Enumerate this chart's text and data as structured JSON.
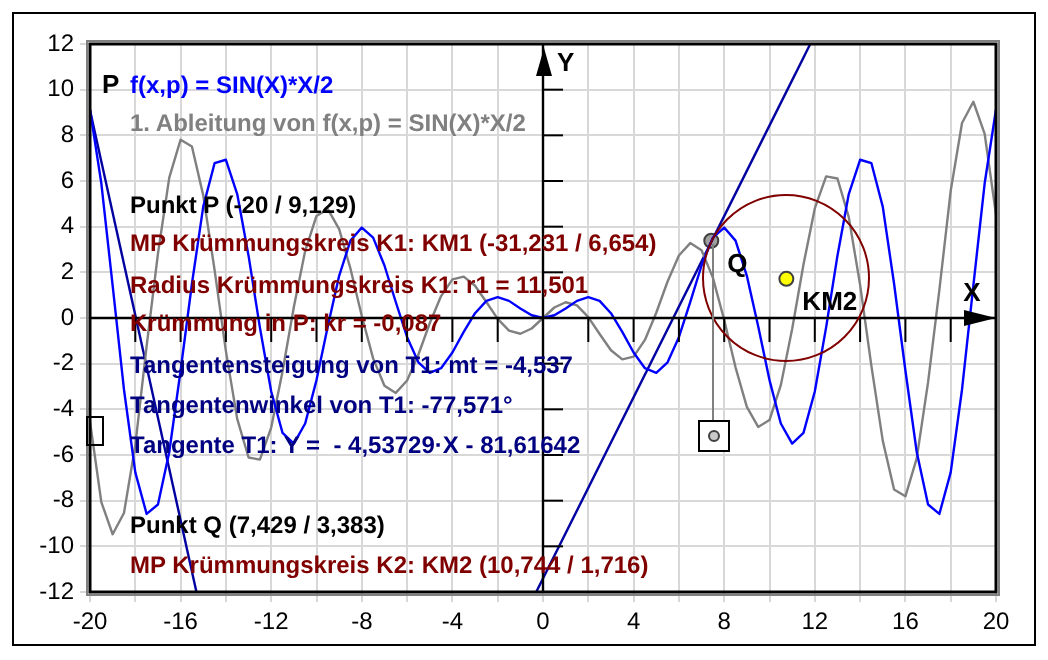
{
  "chart_data": {
    "type": "line",
    "xlabel": "X",
    "ylabel": "Y",
    "xlim": [
      -20,
      20
    ],
    "ylim": [
      -12,
      12
    ],
    "xticks": [
      -20,
      {
        "value": -18,
        "label": null
      },
      -16,
      {
        "value": -14,
        "label": null
      },
      -12,
      {
        "value": -10,
        "label": null
      },
      -8,
      {
        "value": -6,
        "label": null
      },
      -4,
      {
        "value": -2,
        "label": null
      },
      0,
      {
        "value": 2,
        "label": null
      },
      4,
      {
        "value": 6,
        "label": null
      },
      8,
      {
        "value": 10,
        "label": null
      },
      12,
      {
        "value": 14,
        "label": null
      },
      16,
      {
        "value": 18,
        "label": null
      },
      20
    ],
    "yticks": [
      -12,
      -10,
      -8,
      -6,
      -4,
      -2,
      0,
      2,
      4,
      6,
      8,
      10,
      12
    ],
    "grid": true,
    "legend": "top left",
    "marker": "none",
    "line_style": "solid",
    "series": [
      {
        "name": "f(x,p) = SIN(X)*X/2",
        "color": "#0000ff",
        "x": [
          -20,
          -19.5,
          -19,
          -18.5,
          -18,
          -17.5,
          -17,
          -16.5,
          -16,
          -15.5,
          -15,
          -14.5,
          -14,
          -13.5,
          -13,
          -12.5,
          -12,
          -11.5,
          -11,
          -10.5,
          -10,
          -9.5,
          -9,
          -8.5,
          -8,
          -7.5,
          -7,
          -6.5,
          -6,
          -5.5,
          -5,
          -4.5,
          -4,
          -3.5,
          -3,
          -2.5,
          -2,
          -1.5,
          -1,
          -0.5,
          0,
          0.5,
          1,
          1.5,
          2,
          2.5,
          3,
          3.5,
          4,
          4.5,
          5,
          5.5,
          6,
          6.5,
          7,
          7.5,
          8,
          8.5,
          9,
          9.5,
          10,
          10.5,
          11,
          11.5,
          12,
          12.5,
          13,
          13.5,
          14,
          14.5,
          15,
          15.5,
          16,
          16.5,
          17,
          17.5,
          18,
          18.5,
          19,
          19.5,
          20
        ],
        "values": [
          9.13,
          5.9,
          1.42,
          -3.13,
          -6.76,
          -8.58,
          -8.17,
          -5.87,
          -2.3,
          1.5,
          4.88,
          6.78,
          6.93,
          5.43,
          2.73,
          -0.41,
          -3.22,
          -5.03,
          -5.5,
          -4.62,
          -2.72,
          -0.36,
          1.85,
          3.39,
          3.96,
          3.52,
          2.3,
          0.7,
          -0.84,
          -1.94,
          -2.4,
          -2.2,
          -1.51,
          -0.61,
          0.21,
          0.75,
          0.91,
          0.75,
          0.42,
          0.12,
          0,
          0.12,
          0.42,
          0.75,
          0.91,
          0.75,
          0.21,
          -0.61,
          -1.51,
          -2.2,
          -2.4,
          -1.94,
          -0.84,
          0.7,
          2.3,
          3.52,
          3.96,
          3.39,
          1.85,
          -0.36,
          -2.72,
          -4.62,
          -5.5,
          -5.03,
          -3.22,
          -0.41,
          2.73,
          5.43,
          6.93,
          6.78,
          4.88,
          1.5,
          -2.3,
          -5.87,
          -8.17,
          -8.58,
          -6.76,
          -3.13,
          1.42,
          5.9,
          9.13
        ]
      },
      {
        "name": "1. Ableitung von f(x,p) = SIN(X)*X/2",
        "color": "#808080",
        "x": [
          -20,
          -19.5,
          -19,
          -18.5,
          -18,
          -17.5,
          -17,
          -16.5,
          -16,
          -15.5,
          -15,
          -14.5,
          -14,
          -13.5,
          -13,
          -12.5,
          -12,
          -11.5,
          -11,
          -10.5,
          -10,
          -9.5,
          -9,
          -8.5,
          -8,
          -7.5,
          -7,
          -6.5,
          -6,
          -5.5,
          -5,
          -4.5,
          -4,
          -3.5,
          -3,
          -2.5,
          -2,
          -1.5,
          -1,
          -0.5,
          0,
          0.5,
          1,
          1.5,
          2,
          2.5,
          3,
          3.5,
          4,
          4.5,
          5,
          5.5,
          6,
          6.5,
          7,
          7.5,
          8,
          8.5,
          9,
          9.5,
          10,
          10.5,
          11,
          11.5,
          12,
          12.5,
          13,
          13.5,
          14,
          14.5,
          15,
          15.5,
          16,
          16.5,
          17,
          17.5,
          18,
          18.5,
          19,
          19.5,
          20
        ],
        "values": [
          -4.54,
          -8.06,
          -9.47,
          -8.54,
          -5.57,
          -1.23,
          2.82,
          6.15,
          7.81,
          7.51,
          5.37,
          2.11,
          -1.45,
          -4.42,
          -6.11,
          -6.2,
          -4.8,
          -2.34,
          0.48,
          2.94,
          4.47,
          4.77,
          3.89,
          2.16,
          0.09,
          -1.77,
          -2.97,
          -3.28,
          -2.74,
          -1.6,
          -0.23,
          0.96,
          1.69,
          1.81,
          1.41,
          0.7,
          -0.04,
          -0.55,
          -0.69,
          -0.46,
          0,
          0.46,
          0.69,
          0.55,
          0.04,
          -0.7,
          -1.41,
          -1.81,
          -1.69,
          -0.96,
          0.23,
          1.6,
          2.74,
          3.28,
          2.97,
          1.77,
          -0.09,
          -2.16,
          -3.89,
          -4.77,
          -4.47,
          -2.94,
          -0.48,
          2.34,
          4.8,
          6.2,
          6.11,
          4.42,
          1.45,
          -2.11,
          -5.37,
          -7.51,
          -7.81,
          -6.15,
          -2.82,
          1.23,
          5.57,
          8.54,
          9.47,
          8.06,
          4.54
        ]
      },
      {
        "type": "line",
        "color": "#0000a0",
        "x": [
          -20,
          -15.3
        ],
        "values": [
          9.1,
          -12
        ]
      },
      {
        "type": "line",
        "color": "#0000a0",
        "x": [
          -0.3,
          11.8
        ],
        "values": [
          -12,
          12
        ]
      },
      {
        "type": "scatter",
        "marker": "circle",
        "color": "#a0a0a0",
        "x": [
          7.429
        ],
        "values": [
          3.383
        ]
      },
      {
        "type": "scatter",
        "marker": "circle",
        "color": "#ffff00",
        "x": [
          10.744
        ],
        "values": [
          1.716
        ]
      }
    ],
    "annotations": [
      {
        "text": "P",
        "x": -20,
        "y": 9.129
      },
      {
        "text": "Q",
        "x": 7.429,
        "y": 3.383
      },
      {
        "text": "KM2",
        "x": 10.744,
        "y": 1.716
      },
      "Punkt P (-20 / 9,129)",
      "MP Krümmungskreis K1: KM1 (-31,231 / 6,654)",
      "Radius Krümmungskreis K1: r1 = 11,501",
      "Krümmung in P: kr = -0,087",
      "Tangentensteigung von T1: mt = -4,537",
      "Tangentenwinkel von T1: -77,571°",
      "Tangente T1: Y =  - 4,53729·X - 81,61642",
      "Punkt Q (7,429 / 3,383)",
      "MP Krümmungskreis K2: KM2 (10,744 / 1,716)"
    ]
  }
}
